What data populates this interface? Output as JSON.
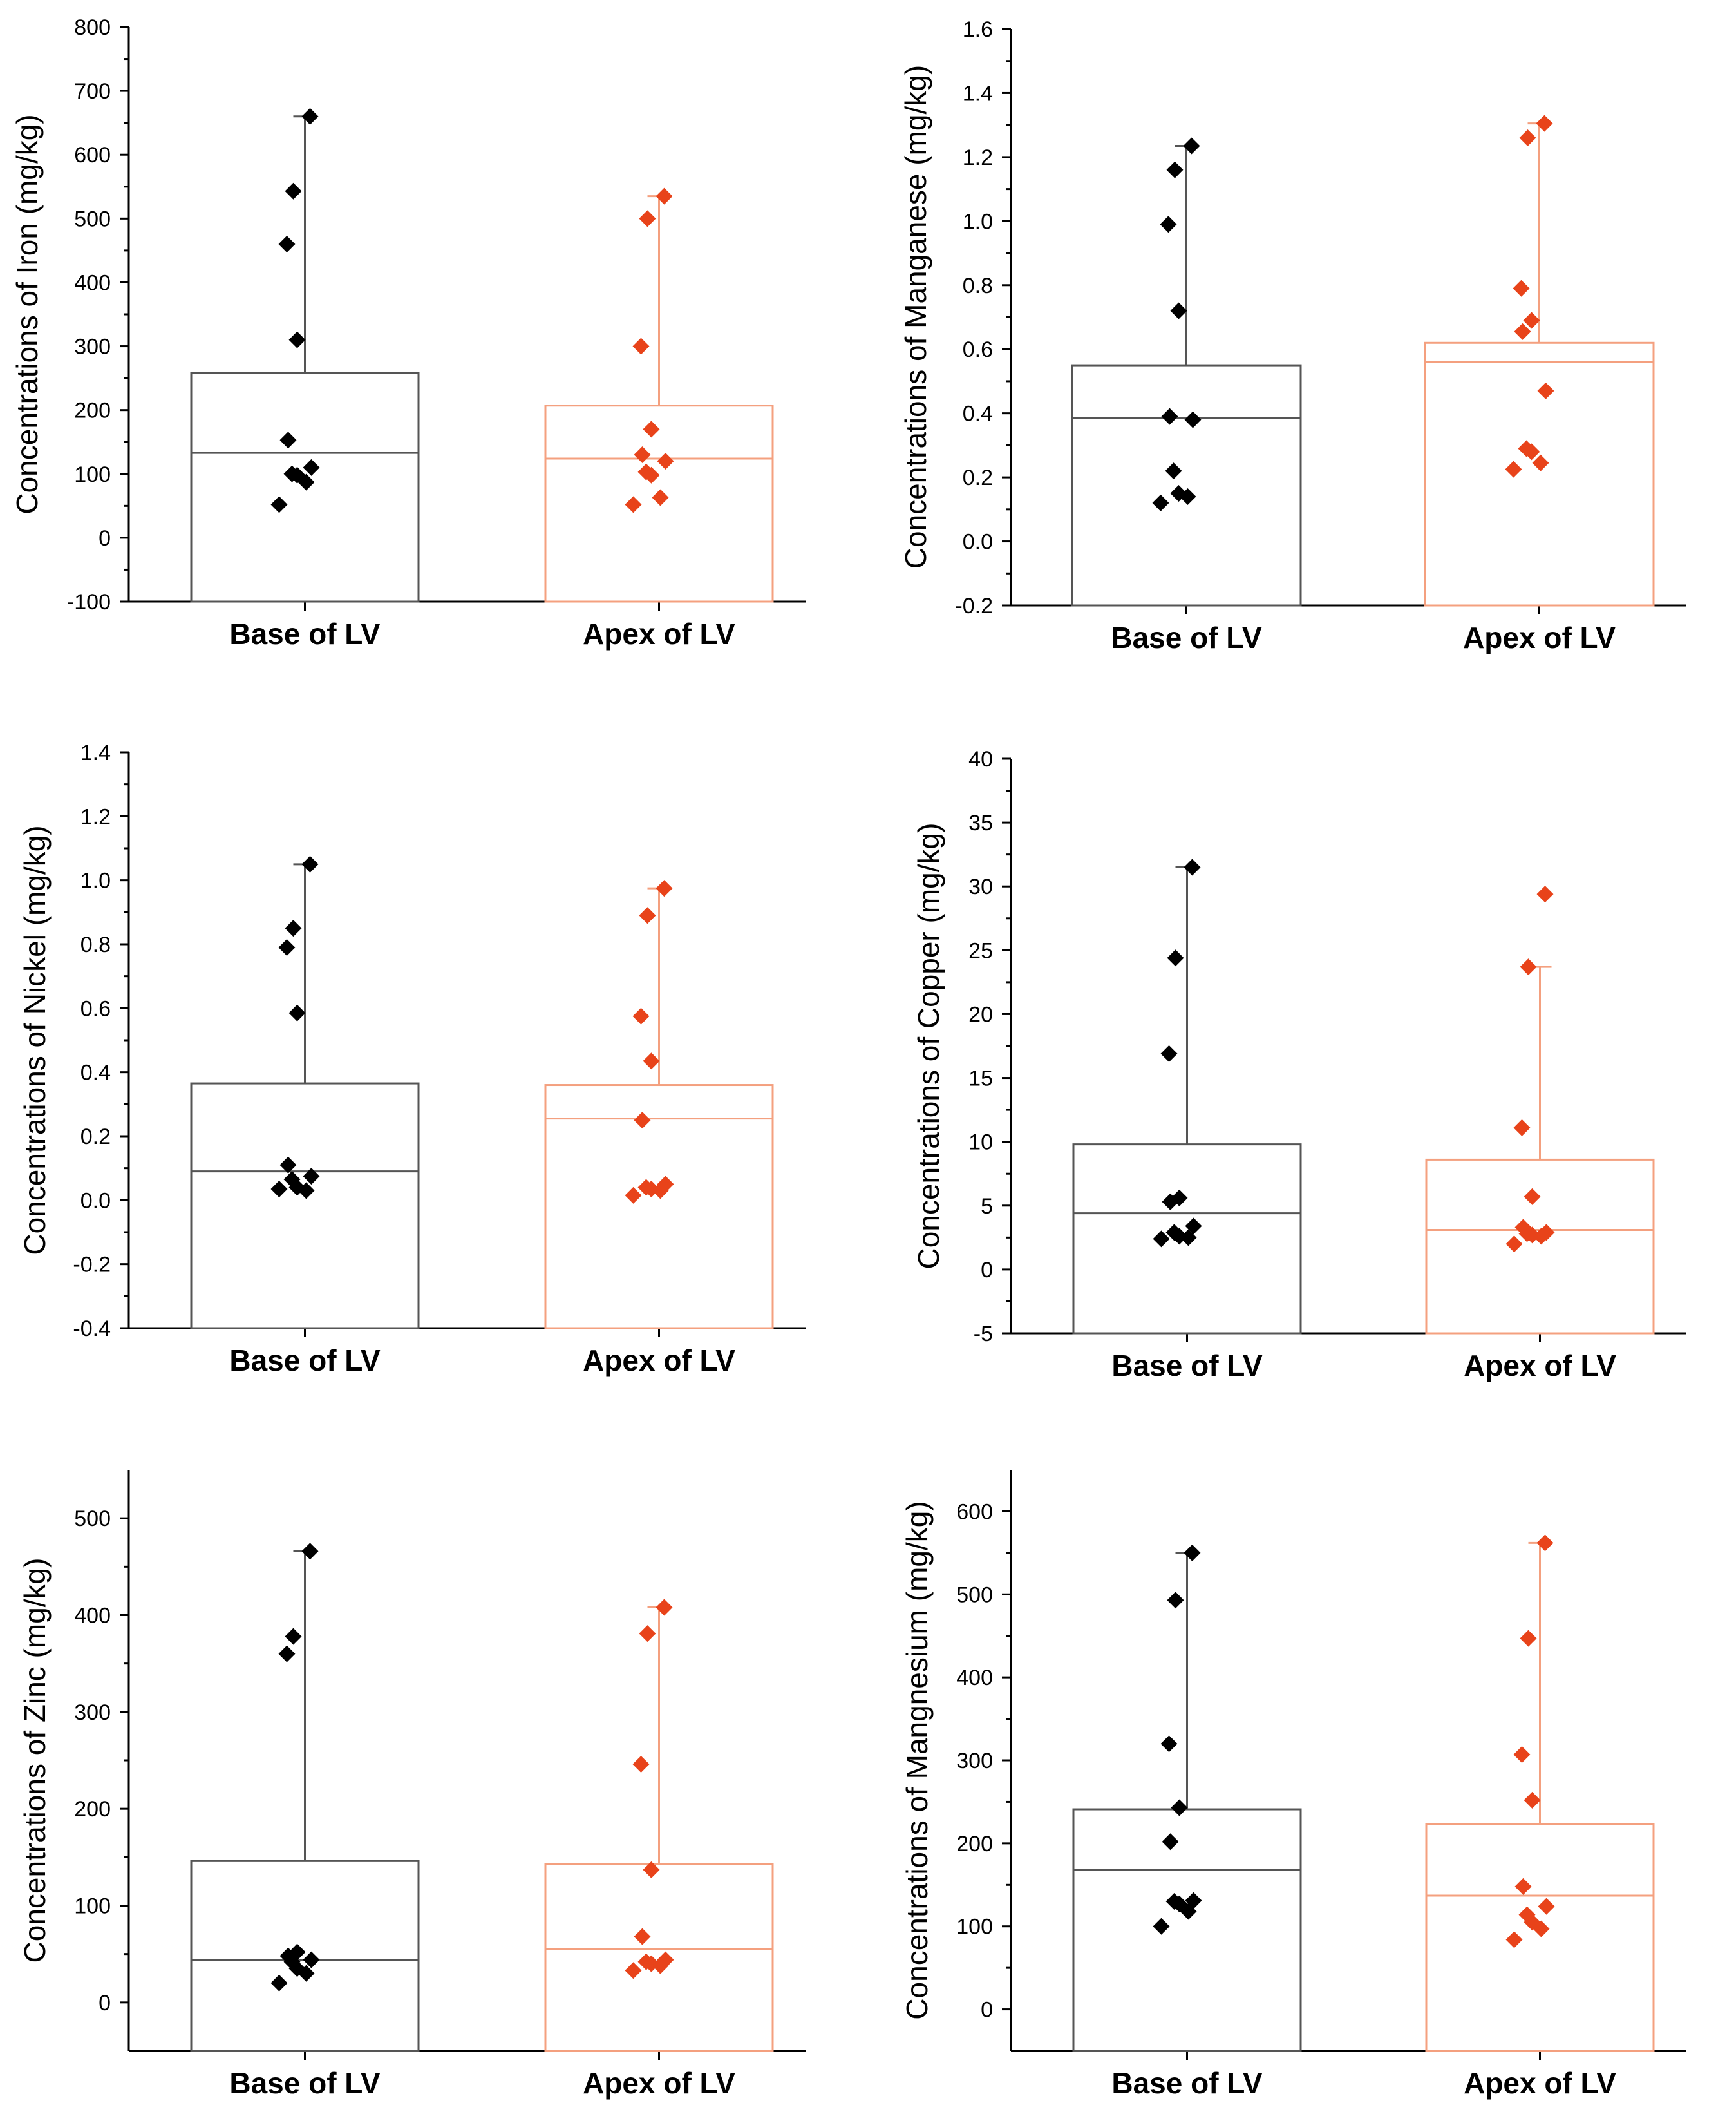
{
  "series_colors": {
    "Base of LV": "#000000",
    "Apex of LV": "#e8431a"
  },
  "box_colors": {
    "Base of LV": "#555555",
    "Apex of LV": "#f4a07f"
  },
  "chart_data": [
    {
      "type": "box-scatter",
      "ylabel": "Concentrations of Iron (mg/kg)",
      "ylim": [
        -100,
        800
      ],
      "yticks": [
        -100,
        0,
        100,
        200,
        300,
        400,
        500,
        600,
        700,
        800
      ],
      "yticklabels": [
        "-100",
        "0",
        "100",
        "200",
        "300",
        "400",
        "500",
        "600",
        "700",
        "800"
      ],
      "categories": [
        "Base of LV",
        "Apex of LV"
      ],
      "groups": [
        {
          "name": "Base of LV",
          "box_top": 258,
          "median": 133,
          "whisker_max": 660,
          "points": [
            660,
            543,
            460,
            310,
            153,
            110,
            100,
            98,
            87,
            52
          ]
        },
        {
          "name": "Apex of LV",
          "box_top": 207,
          "median": 124,
          "whisker_max": 535,
          "points": [
            535,
            500,
            300,
            170,
            130,
            120,
            103,
            98,
            63,
            52
          ]
        }
      ]
    },
    {
      "type": "box-scatter",
      "ylabel": "Concentrations of Manganese (mg/kg)",
      "ylim": [
        -0.2,
        1.6
      ],
      "yticks": [
        -0.2,
        0,
        0.2,
        0.4,
        0.6,
        0.8,
        1.0,
        1.2,
        1.4,
        1.6
      ],
      "yticklabels": [
        "-0.2",
        "0.0",
        "0.2",
        "0.4",
        "0.6",
        "0.8",
        "1.0",
        "1.2",
        "1.4",
        "1.6"
      ],
      "categories": [
        "Base of LV",
        "Apex of LV"
      ],
      "groups": [
        {
          "name": "Base of LV",
          "box_top": 0.55,
          "median": 0.385,
          "whisker_max": 1.235,
          "points": [
            1.235,
            1.16,
            0.99,
            0.72,
            0.39,
            0.38,
            0.22,
            0.15,
            0.14,
            0.12
          ]
        },
        {
          "name": "Apex of LV",
          "box_top": 0.62,
          "median": 0.56,
          "whisker_max": 1.305,
          "points": [
            1.305,
            1.26,
            0.79,
            0.69,
            0.655,
            0.47,
            0.29,
            0.28,
            0.245,
            0.225
          ]
        }
      ]
    },
    {
      "type": "box-scatter",
      "ylabel": "Concentrations of Nickel (mg/kg)",
      "ylim": [
        -0.4,
        1.4
      ],
      "yticks": [
        -0.4,
        -0.2,
        0,
        0.2,
        0.4,
        0.6,
        0.8,
        1.0,
        1.2,
        1.4
      ],
      "yticklabels": [
        "-0.4",
        "-0.2",
        "0.0",
        "0.2",
        "0.4",
        "0.6",
        "0.8",
        "1.0",
        "1.2",
        "1.4"
      ],
      "categories": [
        "Base of LV",
        "Apex of LV"
      ],
      "groups": [
        {
          "name": "Base of LV",
          "box_top": 0.365,
          "median": 0.09,
          "whisker_max": 1.05,
          "points": [
            1.05,
            0.85,
            0.79,
            0.585,
            0.11,
            0.075,
            0.065,
            0.04,
            0.03,
            0.035
          ]
        },
        {
          "name": "Apex of LV",
          "box_top": 0.36,
          "median": 0.255,
          "whisker_max": 0.975,
          "points": [
            0.975,
            0.89,
            0.575,
            0.435,
            0.25,
            0.05,
            0.04,
            0.035,
            0.03,
            0.015
          ]
        }
      ]
    },
    {
      "type": "box-scatter",
      "ylabel": "Concentrations of Copper (mg/kg)",
      "ylim": [
        -5,
        40
      ],
      "yticks": [
        -5,
        0,
        5,
        10,
        15,
        20,
        25,
        30,
        35,
        40
      ],
      "yticklabels": [
        "-5",
        "0",
        "5",
        "10",
        "15",
        "20",
        "25",
        "30",
        "35",
        "40"
      ],
      "categories": [
        "Base of LV",
        "Apex of LV"
      ],
      "groups": [
        {
          "name": "Base of LV",
          "box_top": 9.8,
          "median": 4.4,
          "whisker_max": 31.5,
          "points": [
            31.5,
            24.4,
            16.9,
            5.6,
            5.3,
            3.4,
            2.9,
            2.6,
            2.5,
            2.4
          ]
        },
        {
          "name": "Apex of LV",
          "box_top": 8.6,
          "median": 3.1,
          "whisker_max": 23.7,
          "points": [
            29.4,
            23.7,
            11.1,
            5.7,
            3.3,
            2.9,
            2.8,
            2.7,
            2.6,
            2.0
          ]
        }
      ]
    },
    {
      "type": "box-scatter",
      "ylabel": "Concentrations of Zinc (mg/kg)",
      "ylim": [
        -50,
        550
      ],
      "yticks": [
        0,
        100,
        200,
        300,
        400,
        500
      ],
      "yticklabels": [
        "0",
        "100",
        "200",
        "300",
        "400",
        "500"
      ],
      "categories": [
        "Base of LV",
        "Apex of LV"
      ],
      "groups": [
        {
          "name": "Base of LV",
          "box_top": 146,
          "median": 44,
          "whisker_max": 466,
          "points": [
            466,
            378,
            360,
            52,
            48,
            44,
            42,
            35,
            30,
            20
          ]
        },
        {
          "name": "Apex of LV",
          "box_top": 143,
          "median": 55,
          "whisker_max": 408,
          "points": [
            408,
            381,
            246,
            137,
            68,
            44,
            42,
            40,
            38,
            33
          ]
        }
      ]
    },
    {
      "type": "box-scatter",
      "ylabel": "Concentrations of Mangnesium (mg/kg)",
      "ylim": [
        -50,
        650
      ],
      "yticks": [
        0,
        100,
        200,
        300,
        400,
        500,
        600
      ],
      "yticklabels": [
        "0",
        "100",
        "200",
        "300",
        "400",
        "500",
        "600"
      ],
      "categories": [
        "Base of LV",
        "Apex of LV"
      ],
      "groups": [
        {
          "name": "Base of LV",
          "box_top": 241,
          "median": 168,
          "whisker_max": 550,
          "points": [
            550,
            493,
            320,
            243,
            202,
            131,
            130,
            127,
            118,
            100
          ]
        },
        {
          "name": "Apex of LV",
          "box_top": 223,
          "median": 137,
          "whisker_max": 562,
          "points": [
            562,
            447,
            307,
            252,
            148,
            124,
            114,
            105,
            97,
            84
          ]
        }
      ]
    }
  ]
}
